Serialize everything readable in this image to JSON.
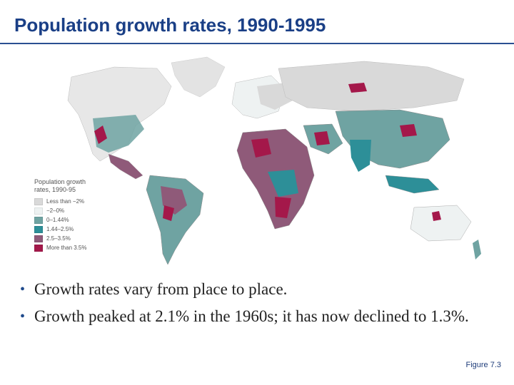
{
  "title": "Population growth rates, 1990-1995",
  "legend": {
    "title_line1": "Population growth",
    "title_line2": "rates, 1990-95",
    "items": [
      {
        "label": "Less than −2%",
        "color": "#d9d9d9"
      },
      {
        "label": "−2–0%",
        "color": "#eef2f2"
      },
      {
        "label": "0–1.44%",
        "color": "#6fa3a2"
      },
      {
        "label": "1.44–2.5%",
        "color": "#2d8f98"
      },
      {
        "label": "2.5–3.5%",
        "color": "#8f5a79"
      },
      {
        "label": "More than 3.5%",
        "color": "#a4184a"
      }
    ]
  },
  "bullets": [
    "Growth rates vary from place to place.",
    "Growth peaked at 2.1% in the 1960s; it has now declined to 1.3%."
  ],
  "figure_ref": "Figure 7.3"
}
